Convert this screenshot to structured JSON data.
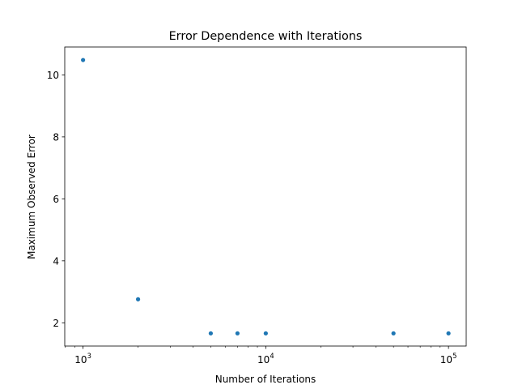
{
  "chart_data": {
    "type": "scatter",
    "title": "Error Dependence with Iterations",
    "xlabel": "Number of Iterations",
    "ylabel": "Maximum Observed Error",
    "xscale": "log",
    "xlim": [
      794,
      125000
    ],
    "ylim": [
      1.25,
      10.9
    ],
    "xticks": [
      {
        "base": "10",
        "exp": "3",
        "value": 1000
      },
      {
        "base": "10",
        "exp": "4",
        "value": 10000
      },
      {
        "base": "10",
        "exp": "5",
        "value": 100000
      }
    ],
    "yticks": [
      {
        "label": "2",
        "value": 2
      },
      {
        "label": "4",
        "value": 4
      },
      {
        "label": "6",
        "value": 6
      },
      {
        "label": "8",
        "value": 8
      },
      {
        "label": "10",
        "value": 10
      }
    ],
    "grid": false,
    "legend": "none",
    "series": [
      {
        "color": "#1f77b4",
        "points": [
          {
            "x": 1000,
            "y": 10.48
          },
          {
            "x": 2000,
            "y": 2.76
          },
          {
            "x": 5000,
            "y": 1.66
          },
          {
            "x": 7000,
            "y": 1.66
          },
          {
            "x": 10000,
            "y": 1.66
          },
          {
            "x": 50000,
            "y": 1.66
          },
          {
            "x": 100000,
            "y": 1.66
          }
        ]
      }
    ]
  }
}
